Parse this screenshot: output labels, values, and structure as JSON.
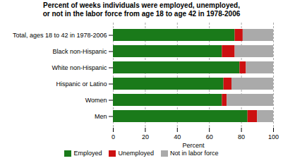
{
  "chart_data": {
    "type": "bar",
    "orientation": "horizontal",
    "stacked": true,
    "title": "Percent of weeks individuals were employed, unemployed,\nor not in the labor force from age 18 to age 42 in 1978-2006",
    "categories": [
      "Total, ages 18 to 42 in 1978-2006",
      "Black non-Hispanic",
      "White non-Hispanic",
      "Hispanic or Latino",
      "Women",
      "Men"
    ],
    "series": [
      {
        "name": "Employed",
        "color": "#1a7a1a",
        "values": [
          76,
          68,
          79,
          69,
          68,
          84
        ]
      },
      {
        "name": "Unemployed",
        "color": "#cc1111",
        "values": [
          5,
          8,
          4,
          5,
          3,
          6
        ]
      },
      {
        "name": "Not in labor force",
        "color": "#aaaaaa",
        "values": [
          19,
          24,
          17,
          26,
          29,
          10
        ]
      }
    ],
    "xlabel": "Percent",
    "xlim": [
      0,
      100
    ],
    "xticks": [
      0,
      20,
      40,
      60,
      80,
      100
    ],
    "grid": true,
    "legend": "bottom"
  }
}
